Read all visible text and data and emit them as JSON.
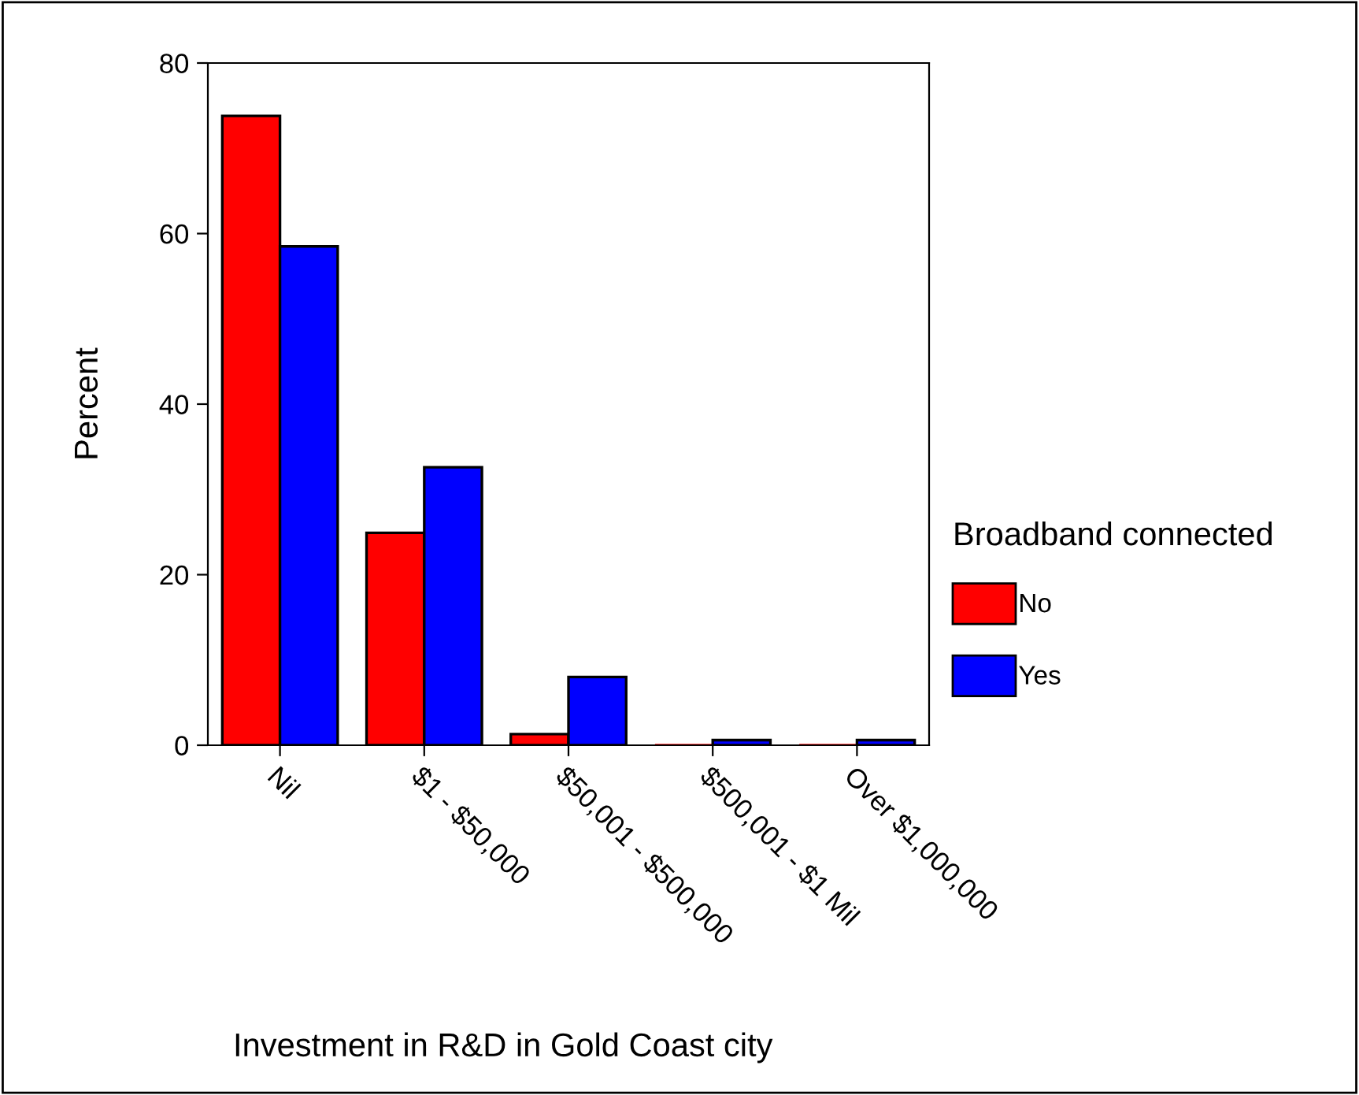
{
  "chart_data": {
    "type": "bar",
    "xlabel": "Investment in R&D in Gold Coast city",
    "ylabel": "Percent",
    "legend_title": "Broadband connected",
    "categories": [
      "Nil",
      "$1 - $50,000",
      "$50,001 - $500,000",
      "$500,001 - $1 Mil",
      "Over $1,000,000"
    ],
    "series": [
      {
        "name": "No",
        "color": "#ff0000",
        "values": [
          73.8,
          24.9,
          1.3,
          0,
          0
        ]
      },
      {
        "name": "Yes",
        "color": "#0000ff",
        "values": [
          58.5,
          32.6,
          8.0,
          0.6,
          0.6
        ]
      }
    ],
    "ylim": [
      0,
      80
    ],
    "yticks": [
      0,
      20,
      40,
      60,
      80
    ],
    "grid": false,
    "legend": "right"
  }
}
